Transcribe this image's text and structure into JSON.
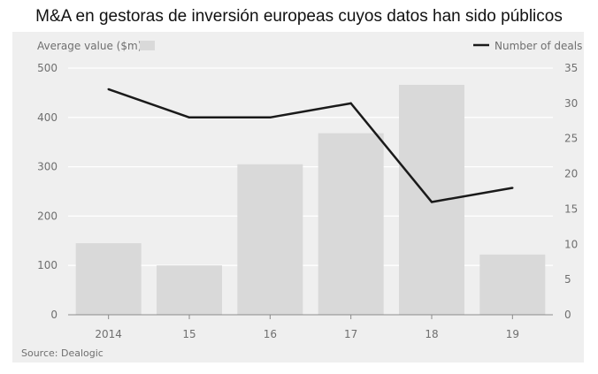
{
  "title": "M&A en gestoras de inversión europeas cuyos datos han sido públicos",
  "chart_data": {
    "type": "bar",
    "categories": [
      "2014",
      "15",
      "16",
      "17",
      "18",
      "19"
    ],
    "series": [
      {
        "name": "Average value ($m)",
        "kind": "bar",
        "axis": "left",
        "values": [
          145,
          100,
          305,
          368,
          466,
          122
        ]
      },
      {
        "name": "Number of deals",
        "kind": "line",
        "axis": "right",
        "values": [
          32,
          28,
          28,
          30,
          16,
          18
        ]
      }
    ],
    "y_left": {
      "min": 0,
      "max": 500,
      "ticks": [
        "0",
        "100",
        "200",
        "300",
        "400",
        "500"
      ]
    },
    "y_right": {
      "min": 0,
      "max": 35,
      "ticks": [
        "0",
        "5",
        "10",
        "15",
        "20",
        "25",
        "30",
        "35"
      ]
    },
    "legend_left": "Average value ($m)",
    "legend_right": "Number of deals",
    "source": "Source: Dealogic",
    "colors": {
      "bar": "#d9d9d9",
      "line": "#1a1a1a",
      "grid": "#ffffff",
      "text": "#6f6f6f"
    }
  }
}
